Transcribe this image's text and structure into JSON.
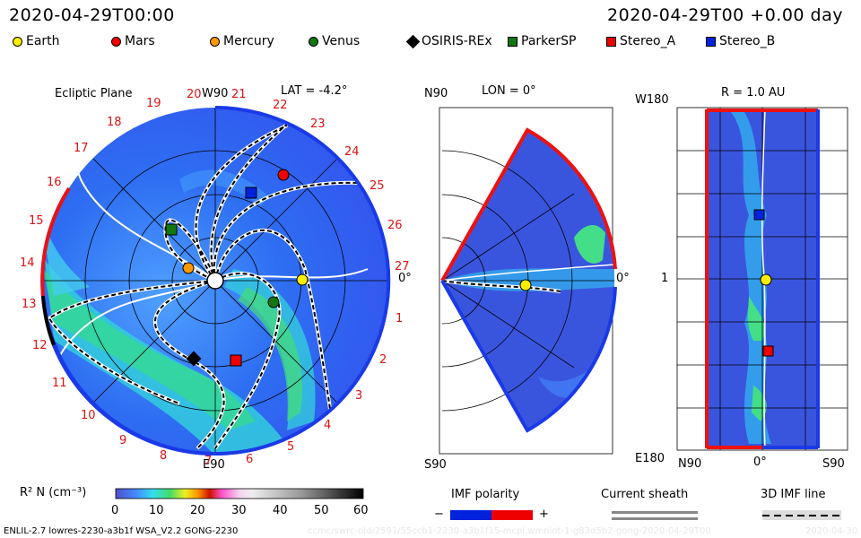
{
  "header": {
    "time_left": "2020-04-29T00:00",
    "time_right": "2020-04-29T00 +0.00 day"
  },
  "legend": [
    {
      "name": "Earth",
      "color": "#ffee00",
      "shape": "circle"
    },
    {
      "name": "Mars",
      "color": "#ee0000",
      "shape": "circle"
    },
    {
      "name": "Mercury",
      "color": "#ff9900",
      "shape": "circle"
    },
    {
      "name": "Venus",
      "color": "#117711",
      "shape": "circle"
    },
    {
      "name": "OSIRIS-REx",
      "color": "#000000",
      "shape": "diamond"
    },
    {
      "name": "ParkerSP",
      "color": "#117711",
      "shape": "square"
    },
    {
      "name": "Stereo_A",
      "color": "#ee0000",
      "shape": "square"
    },
    {
      "name": "Stereo_B",
      "color": "#0022dd",
      "shape": "square"
    }
  ],
  "panel1": {
    "title": "Ecliptic Plane",
    "top_label": "W90",
    "lat_label": "LAT = -4.2°",
    "bottom_label": "E90",
    "right_label": "0°",
    "carrington_numbers": [
      "1",
      "2",
      "3",
      "4",
      "5",
      "6",
      "7",
      "8",
      "9",
      "10",
      "11",
      "12",
      "13",
      "14",
      "15",
      "16",
      "17",
      "18",
      "19",
      "20",
      "21",
      "22",
      "23",
      "24",
      "25",
      "26",
      "27"
    ]
  },
  "panel2": {
    "top_label": "N90",
    "lon_label": "LON = 0°",
    "right_label": "0°",
    "bottom_label": "S90"
  },
  "panel3": {
    "r_label": "R = 1.0 AU",
    "top_left_label": "W180",
    "mid_label": "1",
    "bottom_left_label": "E180",
    "x_left": "N90",
    "x_mid": "0°",
    "x_right": "S90"
  },
  "colorbar": {
    "label": "R² N (cm⁻³)",
    "ticks": [
      "0",
      "10",
      "20",
      "30",
      "40",
      "50",
      "60"
    ],
    "range": [
      0,
      60
    ]
  },
  "imf": {
    "title": "IMF polarity",
    "minus": "−",
    "plus": "+",
    "colors": [
      "#0022dd",
      "#ee0000"
    ]
  },
  "sheath": {
    "title": "Current sheath"
  },
  "imf3d": {
    "title": "3D IMF line"
  },
  "footer": {
    "model": "ENLIL-2.7 lowres-2230-a3b1f WSA_V2.2 GONG-2230",
    "watermark": "ccmc/swrc-old/2591/55ccb1-2230-a3b1f15-mcpl.wmnlot-1-g83d5b2-gong-2020-04-29T00",
    "watermark_right": "2020-04-30"
  },
  "chart_data": [
    {
      "type": "polar-heatmap",
      "title": "Ecliptic Plane",
      "quantity": "R² N (cm⁻³)",
      "range": [
        0,
        60
      ],
      "bodies": [
        "Earth",
        "Mars",
        "Mercury",
        "Venus",
        "OSIRIS-REx",
        "ParkerSP",
        "Stereo_A",
        "Stereo_B"
      ]
    },
    {
      "type": "meridional-heatmap",
      "title": "LON = 0°",
      "bodies": [
        "Earth"
      ]
    },
    {
      "type": "heatmap",
      "title": "R = 1.0 AU",
      "xlabel_ticks": [
        "N90",
        "0°",
        "S90"
      ],
      "ylabel_ticks": [
        "W180",
        "1",
        "E180"
      ],
      "bodies": [
        "Stereo_B",
        "Earth",
        "Stereo_A"
      ]
    }
  ]
}
